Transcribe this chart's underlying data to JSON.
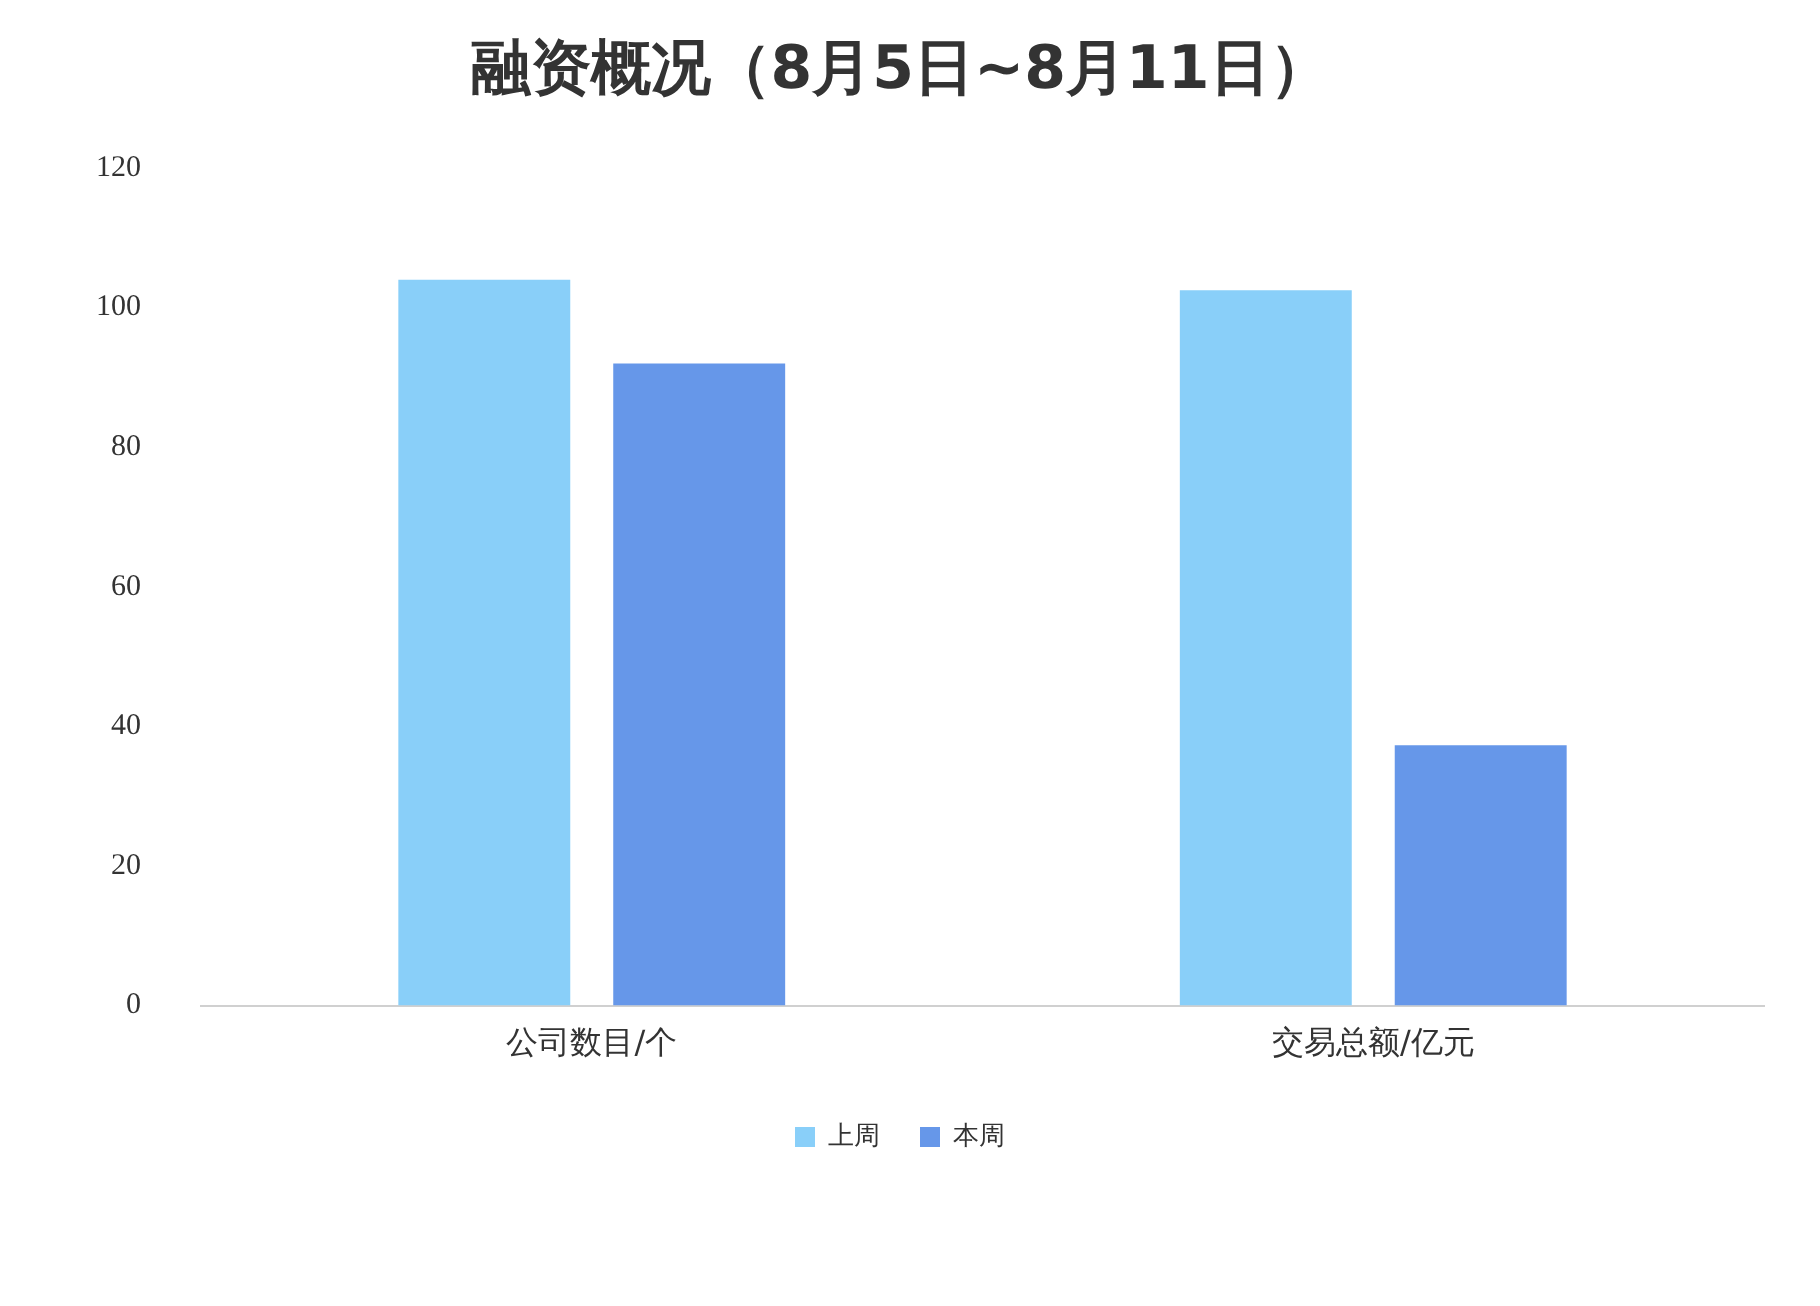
{
  "chart_data": {
    "type": "bar",
    "title": "融资概况（8月5日~8月11日）",
    "categories": [
      "公司数目/个",
      "交易总额/亿元"
    ],
    "series": [
      {
        "name": "上周",
        "color": "#89cff9",
        "values": [
          104,
          102.5
        ]
      },
      {
        "name": "本周",
        "color": "#6697e9",
        "values": [
          92,
          37.3
        ]
      }
    ],
    "ylim": [
      0,
      120
    ],
    "yticks": [
      0,
      20,
      40,
      60,
      80,
      100,
      120
    ],
    "grid": false,
    "legend": "bottom"
  }
}
